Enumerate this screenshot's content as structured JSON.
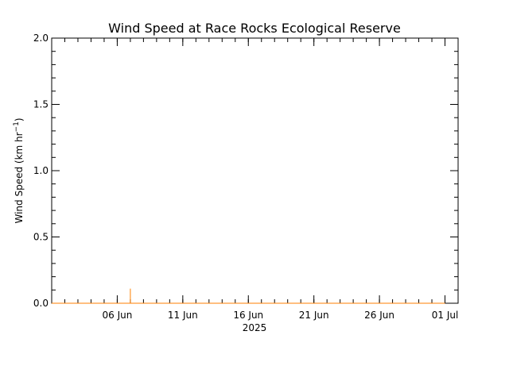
{
  "chart_data": {
    "type": "line",
    "title": "Wind Speed at Race Rocks Ecological Reserve",
    "ylabel_main": "Wind Speed (km hr",
    "ylabel_sup": "−1",
    "ylabel_close": ")",
    "year_label": "2025",
    "x_range": [
      "2025-06-01",
      "2025-07-02"
    ],
    "ylim": [
      0,
      2.0
    ],
    "y_major_ticks": [
      0.0,
      0.5,
      1.0,
      1.5,
      2.0
    ],
    "y_tick_labels": [
      "0.0",
      "0.5",
      "1.0",
      "1.5",
      "2.0"
    ],
    "y_minor_step": 0.1,
    "x_major_ticks": [
      "2025-06-06",
      "2025-06-11",
      "2025-06-16",
      "2025-06-21",
      "2025-06-26",
      "2025-07-01"
    ],
    "x_tick_labels": [
      "06 Jun",
      "11 Jun",
      "16 Jun",
      "21 Jun",
      "26 Jun",
      "01 Jul"
    ],
    "x_minor_step_days": 1,
    "grid": false,
    "line_color": "#ff7f00",
    "series": [
      {
        "name": "",
        "points": [
          [
            "2025-06-01",
            0.0
          ],
          [
            "2025-06-07",
            0.0
          ],
          [
            "2025-06-07",
            0.11
          ],
          [
            "2025-06-07",
            0.0
          ],
          [
            "2025-07-01",
            0.0
          ]
        ]
      }
    ]
  }
}
